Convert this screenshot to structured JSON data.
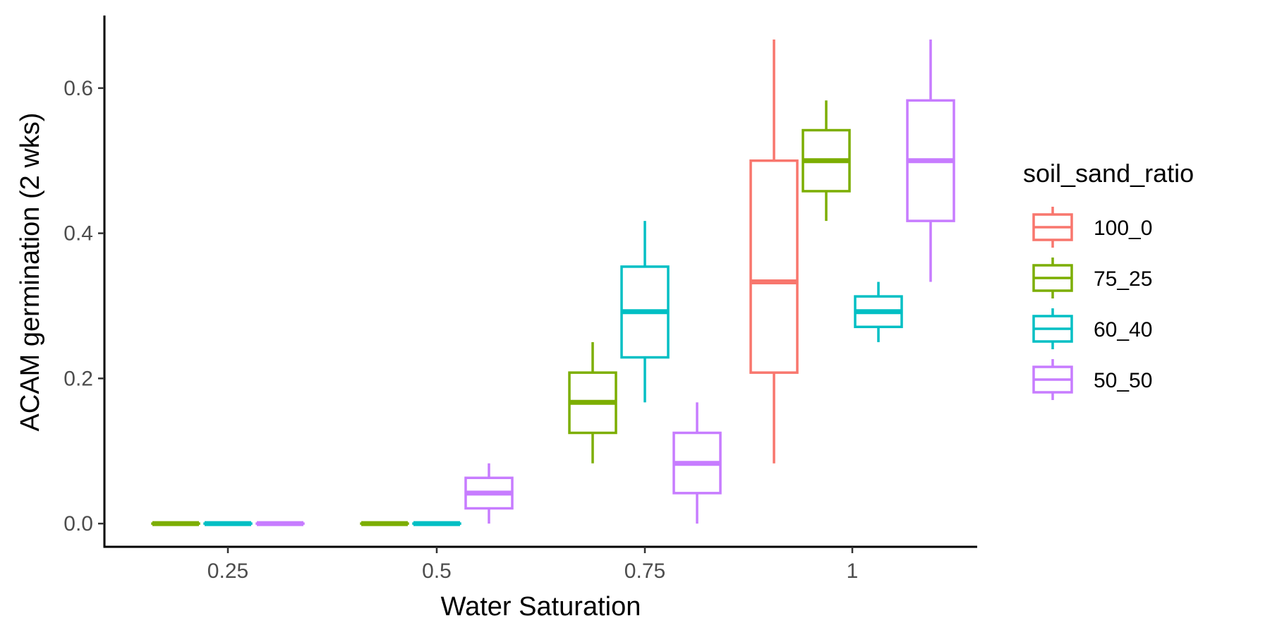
{
  "chart_data": {
    "type": "boxplot",
    "xlabel": "Water Saturation",
    "ylabel": "ACAM germination (2 wks)",
    "categories": [
      "0.25",
      "0.5",
      "0.75",
      "1"
    ],
    "ylim": [
      -0.032,
      0.7
    ],
    "yticks": [
      0.0,
      0.2,
      0.4,
      0.6
    ],
    "ytick_labels": [
      "0.0",
      "0.2",
      "0.4",
      "0.6"
    ],
    "grid": false,
    "legend": {
      "title": "soil_sand_ratio",
      "position": "right"
    },
    "series": [
      {
        "name": "100_0",
        "color": "#F8766D",
        "boxes": [
          null,
          null,
          null,
          {
            "min": 0.083,
            "q1": 0.208,
            "median": 0.333,
            "q3": 0.5,
            "max": 0.667
          }
        ]
      },
      {
        "name": "75_25",
        "color": "#7CAE00",
        "boxes": [
          {
            "min": 0.0,
            "q1": 0.0,
            "median": 0.0,
            "q3": 0.0,
            "max": 0.0
          },
          {
            "min": 0.0,
            "q1": 0.0,
            "median": 0.0,
            "q3": 0.0,
            "max": 0.0
          },
          {
            "min": 0.083,
            "q1": 0.125,
            "median": 0.167,
            "q3": 0.208,
            "max": 0.25
          },
          {
            "min": 0.417,
            "q1": 0.458,
            "median": 0.5,
            "q3": 0.542,
            "max": 0.583
          }
        ]
      },
      {
        "name": "60_40",
        "color": "#00BFC4",
        "boxes": [
          {
            "min": 0.0,
            "q1": 0.0,
            "median": 0.0,
            "q3": 0.0,
            "max": 0.0
          },
          {
            "min": 0.0,
            "q1": 0.0,
            "median": 0.0,
            "q3": 0.0,
            "max": 0.0
          },
          {
            "min": 0.167,
            "q1": 0.229,
            "median": 0.292,
            "q3": 0.354,
            "max": 0.417
          },
          {
            "min": 0.25,
            "q1": 0.271,
            "median": 0.292,
            "q3": 0.313,
            "max": 0.333
          }
        ]
      },
      {
        "name": "50_50",
        "color": "#C77CFF",
        "boxes": [
          {
            "min": 0.0,
            "q1": 0.0,
            "median": 0.0,
            "q3": 0.0,
            "max": 0.0
          },
          {
            "min": 0.0,
            "q1": 0.021,
            "median": 0.042,
            "q3": 0.063,
            "max": 0.083
          },
          {
            "min": 0.0,
            "q1": 0.042,
            "median": 0.083,
            "q3": 0.125,
            "max": 0.167
          },
          {
            "min": 0.333,
            "q1": 0.417,
            "median": 0.5,
            "q3": 0.583,
            "max": 0.667
          }
        ]
      }
    ]
  }
}
